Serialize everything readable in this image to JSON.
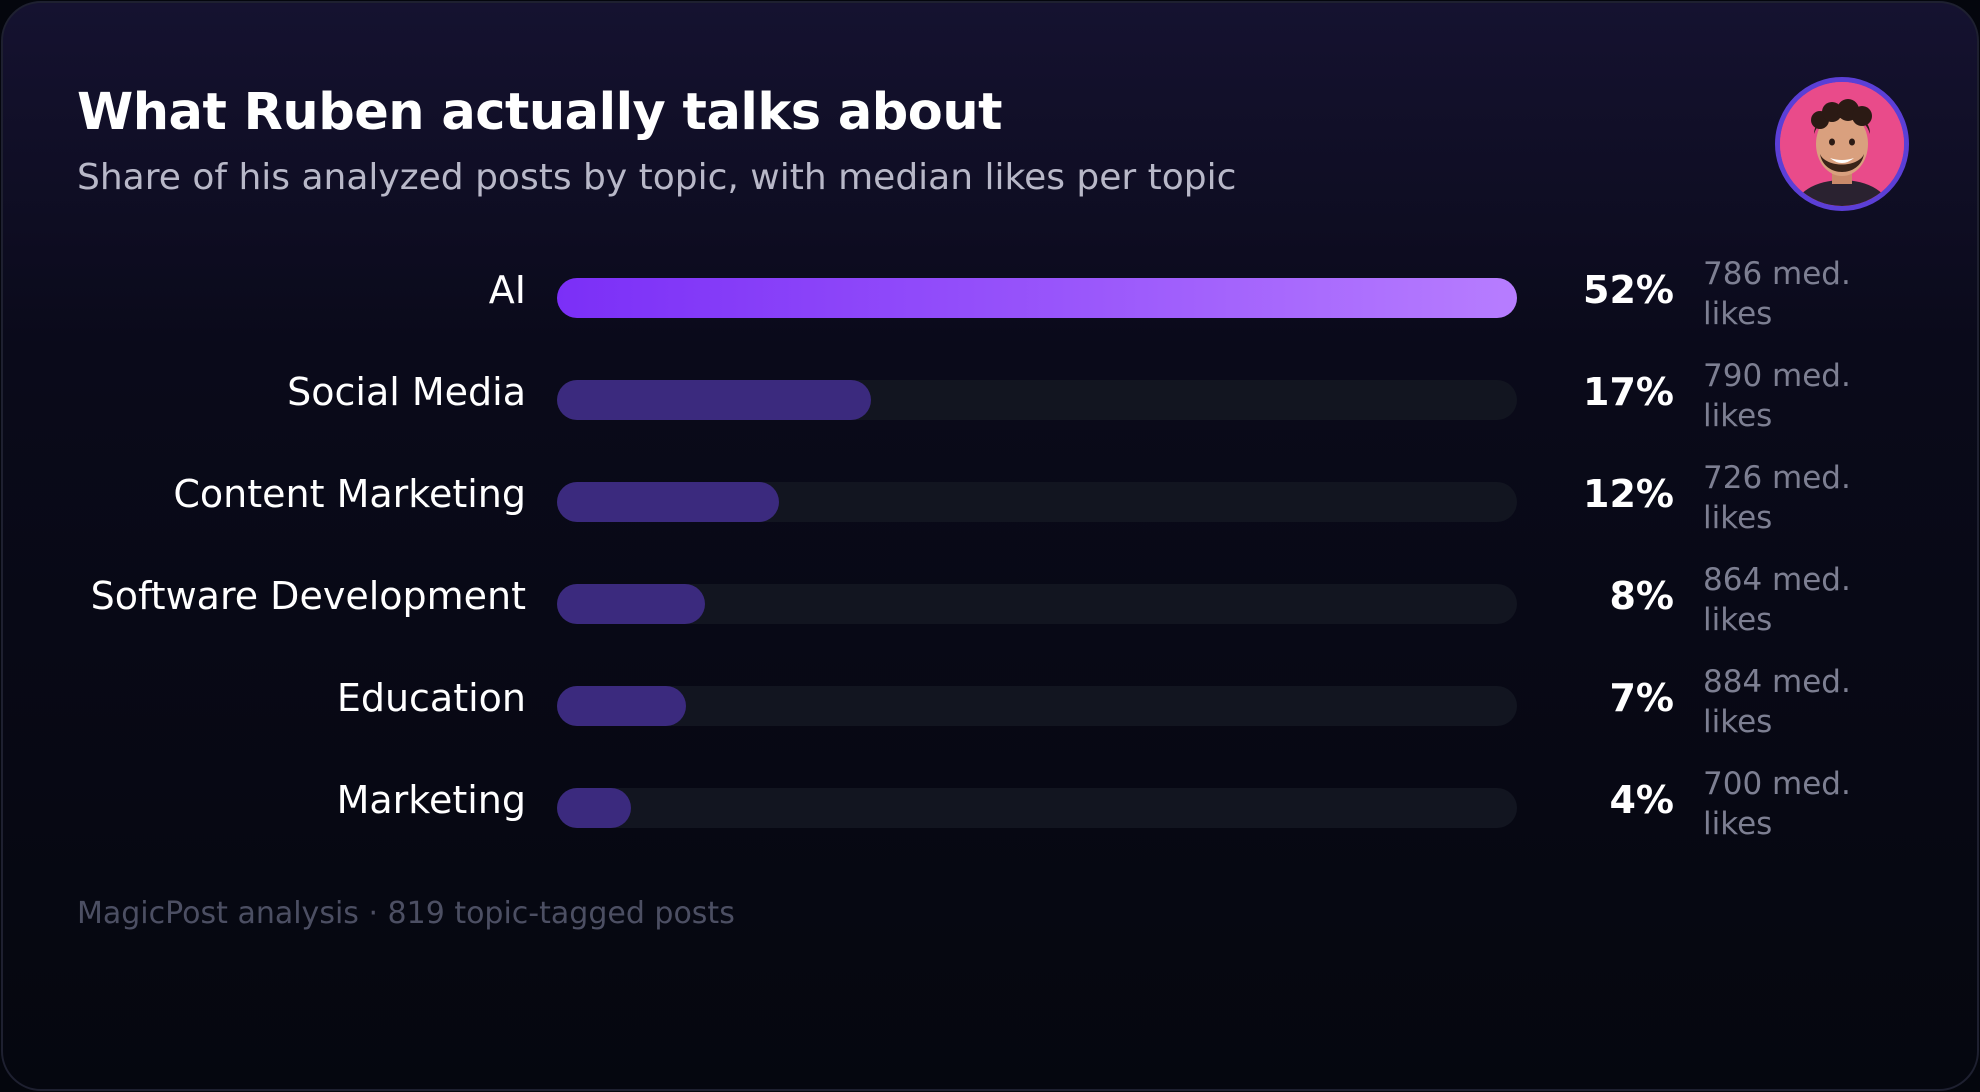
{
  "colors": {
    "primary_bar_start": "#7b2ff7",
    "primary_bar_end": "#b77dff",
    "secondary_bar": "#3b2a7e",
    "track": "#121520",
    "avatar_background": "#e94b8a",
    "avatar_ring": "#5b3fd6"
  },
  "avatar": {
    "icon": "person-avatar-icon"
  },
  "footer": {
    "text": "MagicPost analysis · 819 topic-tagged posts"
  },
  "chart_data": {
    "type": "bar",
    "orientation": "horizontal",
    "title": "What Ruben actually talks about",
    "subtitle": "Share of his analyzed posts by topic, with median likes per topic",
    "categories": [
      "AI",
      "Social Media",
      "Content Marketing",
      "Software Development",
      "Education",
      "Marketing"
    ],
    "values": [
      52,
      17,
      12,
      8,
      7,
      4
    ],
    "value_labels": [
      "52%",
      "17%",
      "12%",
      "8%",
      "7%",
      "4%"
    ],
    "median_likes": [
      786,
      790,
      726,
      864,
      884,
      700
    ],
    "median_likes_labels": [
      "786 med. likes",
      "790 med. likes",
      "726 med. likes",
      "864 med. likes",
      "884 med. likes",
      "700 med. likes"
    ],
    "unit": "%",
    "xlim": [
      0,
      52
    ],
    "grid": false,
    "legend": "none"
  }
}
